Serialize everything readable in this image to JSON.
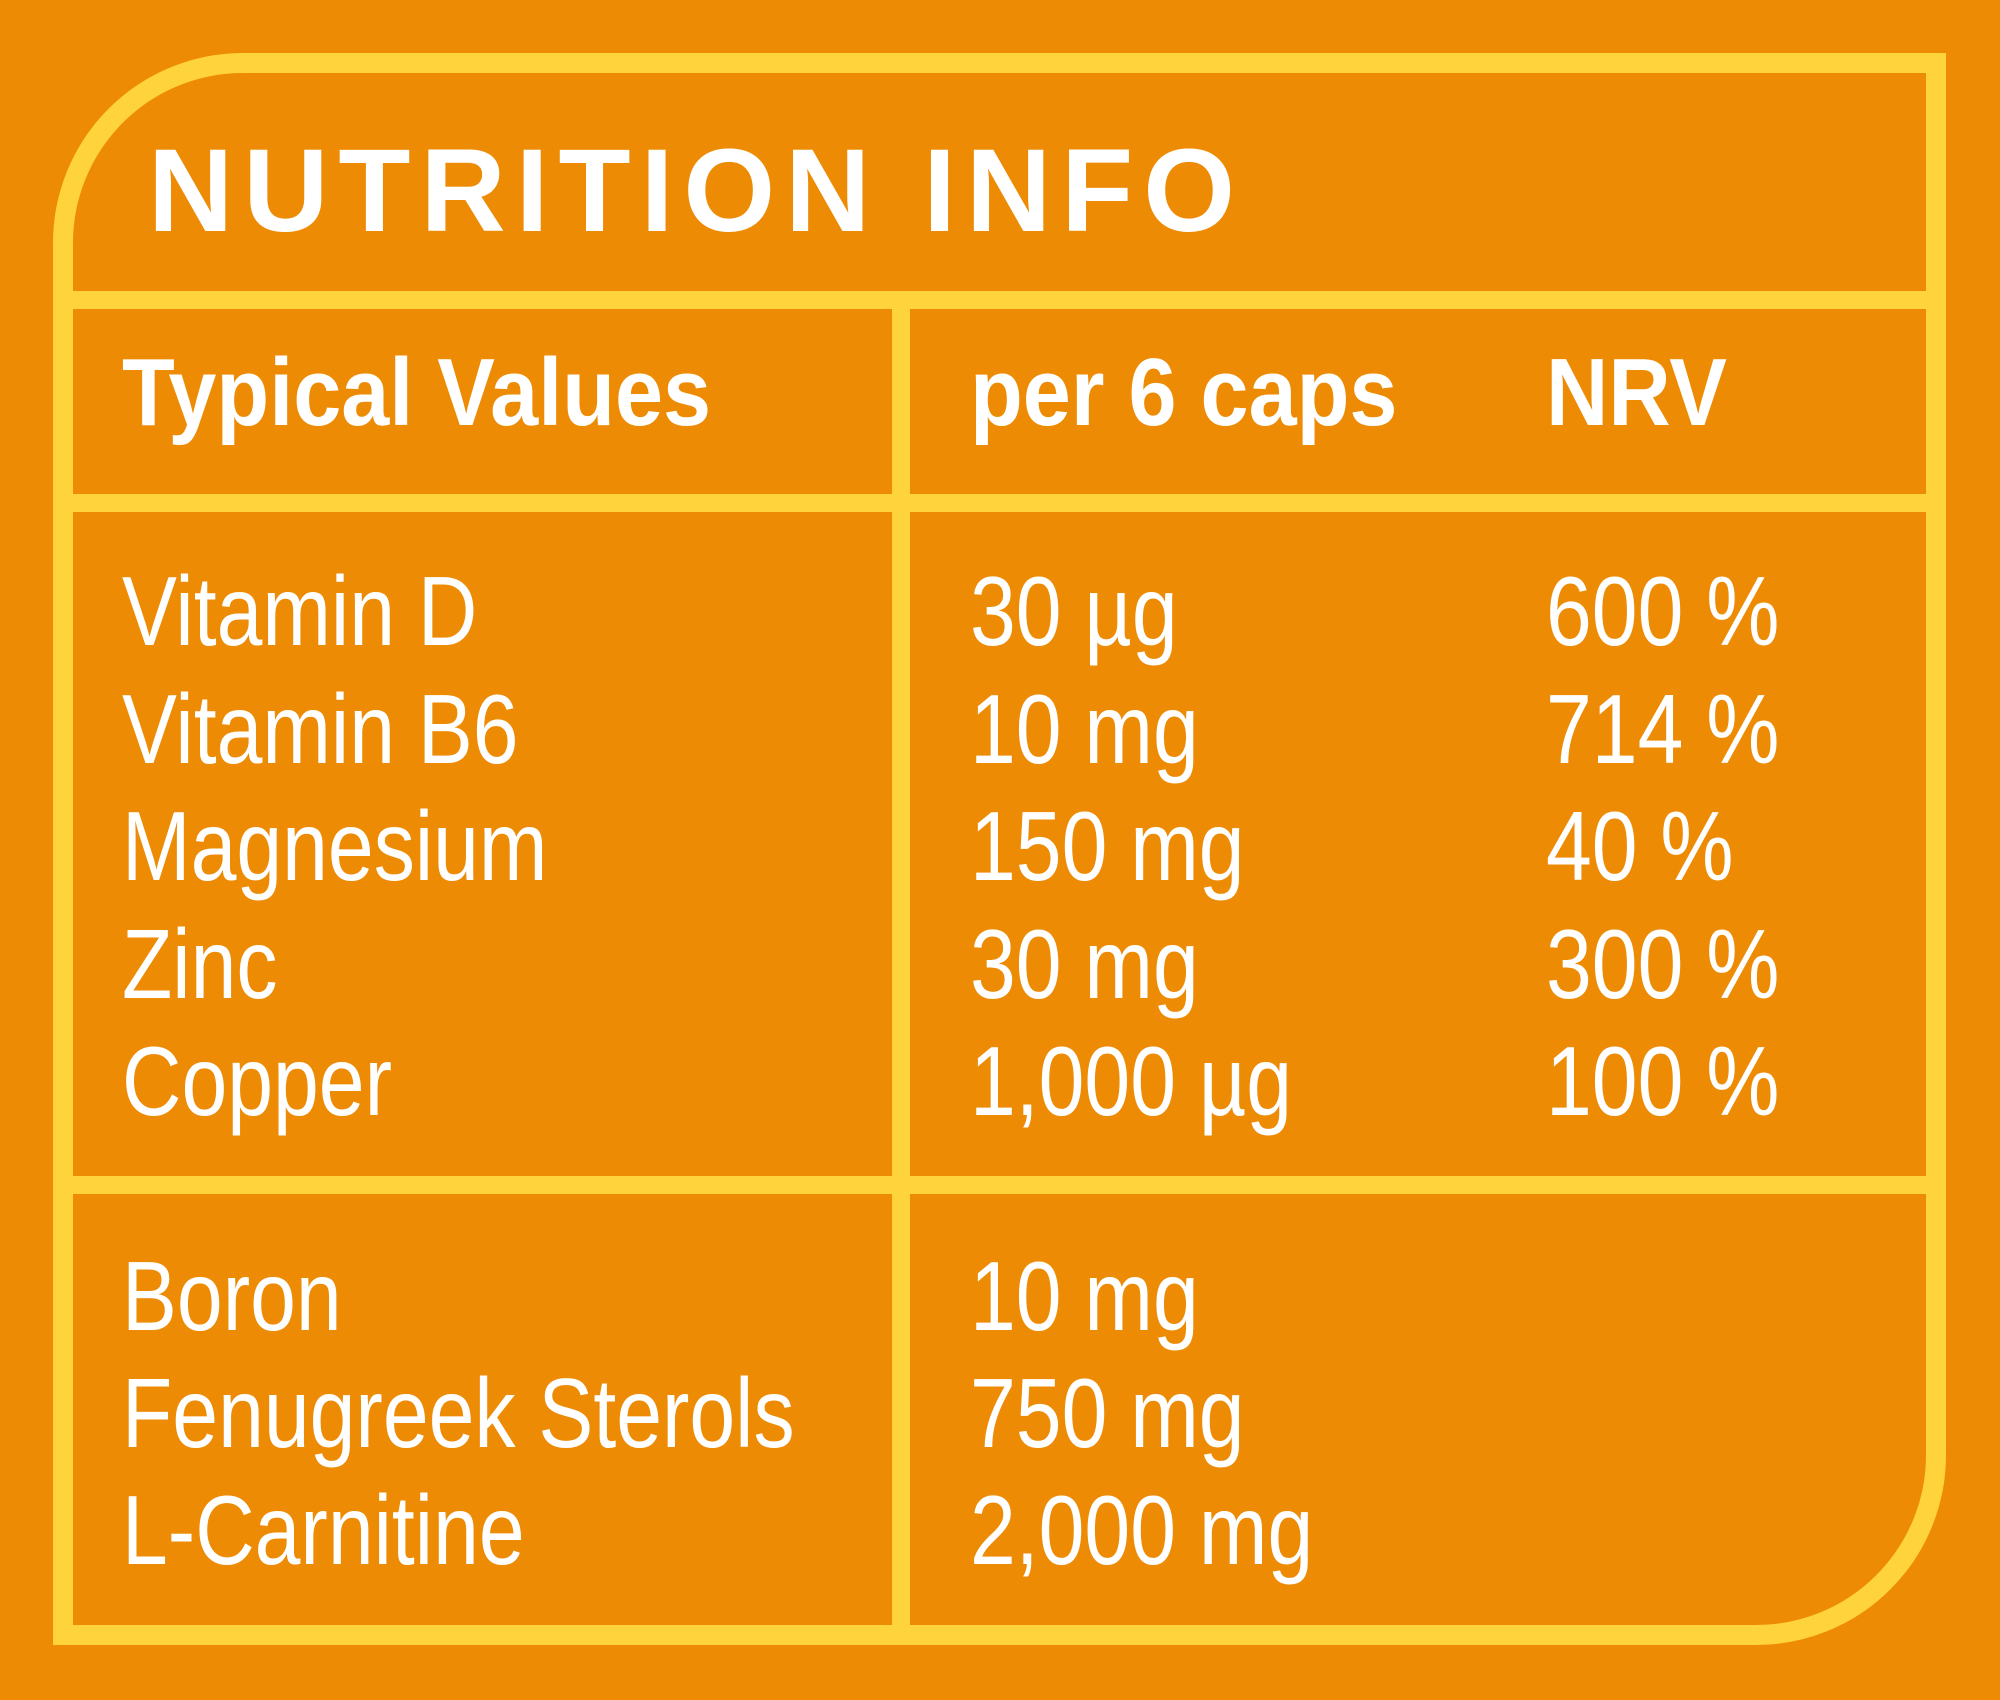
{
  "title": "NUTRITION INFO",
  "headers": {
    "typical_values": "Typical Values",
    "per_serving": "per 6 caps",
    "nrv": "NRV"
  },
  "vitamins_minerals": [
    {
      "name": "Vitamin D",
      "amount": "30 µg",
      "nrv": "600 %"
    },
    {
      "name": "Vitamin B6",
      "amount": "10 mg",
      "nrv": "714 %"
    },
    {
      "name": "Magnesium",
      "amount": "150 mg",
      "nrv": "40 %"
    },
    {
      "name": "Zinc",
      "amount": "30 mg",
      "nrv": "300 %"
    },
    {
      "name": "Copper",
      "amount": "1,000 µg",
      "nrv": "100 %"
    }
  ],
  "other_ingredients": [
    {
      "name": "Boron",
      "amount": "10 mg"
    },
    {
      "name": "Fenugreek Sterols",
      "amount": "750 mg"
    },
    {
      "name": "L-Carnitine",
      "amount": "2,000 mg"
    }
  ],
  "colors": {
    "background": "#EE8B05",
    "border": "#FFD33C",
    "text": "#FFFFFF"
  }
}
